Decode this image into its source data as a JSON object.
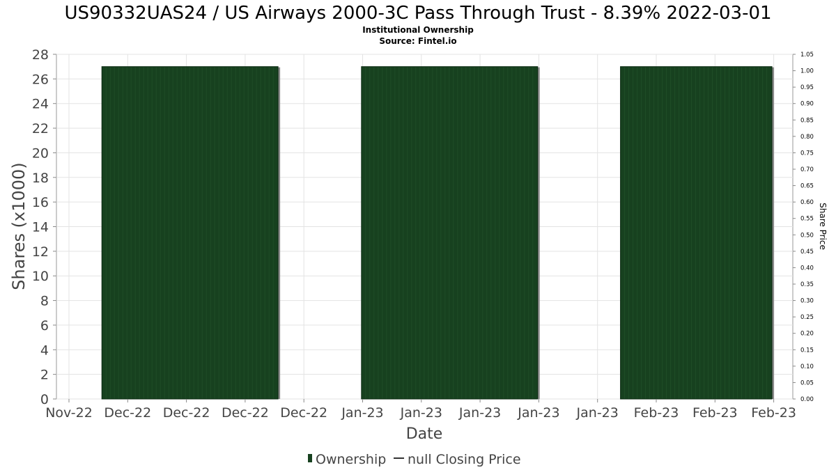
{
  "chart_data": {
    "type": "bar",
    "title": "US90332UAS24 / US Airways 2000-3C Pass Through Trust - 8.39% 2022-03-01",
    "subtitle_lines": [
      "Institutional Ownership",
      "Source: Fintel.io"
    ],
    "xlabel": "Date",
    "ylabel": "Shares (x1000)",
    "y2label": "Share Price",
    "x_tick_labels": [
      "Nov-22",
      "Dec-22",
      "Dec-22",
      "Dec-22",
      "Dec-22",
      "Jan-23",
      "Jan-23",
      "Jan-23",
      "Jan-23",
      "Jan-23",
      "Feb-23",
      "Feb-23",
      "Feb-23"
    ],
    "ylim": [
      0,
      28
    ],
    "y_ticks": [
      0,
      2,
      4,
      6,
      8,
      10,
      12,
      14,
      16,
      18,
      20,
      22,
      24,
      26,
      28
    ],
    "y2lim": [
      0,
      1.05
    ],
    "y2_ticks": [
      "0.00",
      "0.05",
      "0.10",
      "0.15",
      "0.20",
      "0.25",
      "0.30",
      "0.35",
      "0.40",
      "0.45",
      "0.50",
      "0.55",
      "0.60",
      "0.65",
      "0.70",
      "0.75",
      "0.80",
      "0.85",
      "0.90",
      "0.95",
      "1.00",
      "1.05"
    ],
    "grid": true,
    "legend_position": "bottom-center",
    "series": [
      {
        "name": "Ownership",
        "color": "#17411f",
        "blocks": [
          {
            "start_tick": 0.56,
            "end_tick": 3.56,
            "value": 27
          },
          {
            "start_tick": 4.98,
            "end_tick": 7.98,
            "value": 27
          },
          {
            "start_tick": 9.39,
            "end_tick": 11.97,
            "value": 27
          }
        ]
      }
    ],
    "legend": [
      {
        "label": "Ownership",
        "kind": "bar",
        "color": "#17411f"
      },
      {
        "label": "null Closing Price",
        "kind": "line",
        "color": "#333333"
      }
    ]
  }
}
